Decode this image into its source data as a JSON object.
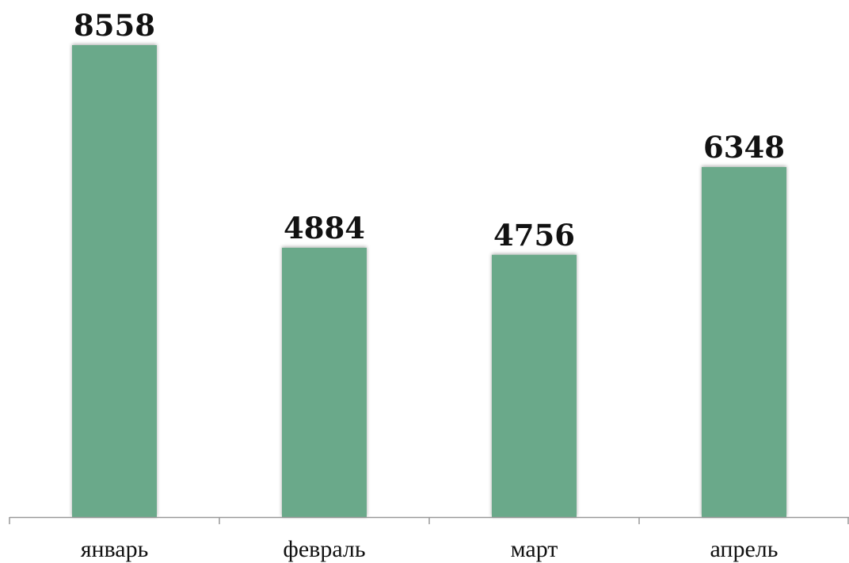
{
  "chart_data": {
    "type": "bar",
    "categories": [
      "январь",
      "февраль",
      "март",
      "апрель"
    ],
    "values": [
      8558,
      4884,
      4756,
      6348
    ],
    "data_labels": [
      "8558",
      "4884",
      "4756",
      "6348"
    ],
    "title": "",
    "xlabel": "",
    "ylabel": "",
    "ylim": [
      0,
      8558
    ],
    "grid": false,
    "legend": "none",
    "bar_color": "#6aa98a",
    "axis_color": "#999999"
  }
}
